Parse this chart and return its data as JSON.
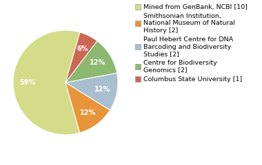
{
  "slices": [
    10,
    2,
    2,
    2,
    1
  ],
  "colors": [
    "#d4dc8a",
    "#e8943a",
    "#a8bfd0",
    "#8db870",
    "#cc6655"
  ],
  "startangle": 74,
  "legend_labels": [
    "Mined from GenBank, NCBI [10]",
    "Smithsonian Institution,\nNational Museum of Natural\nHistory [2]",
    "Paul Hebert Centre for DNA\nBarcoding and Biodiversity\nStudies [2]",
    "Centre for Biodiversity\nGenomics [2]",
    "Columbus State University [1]"
  ],
  "text_color": "#000000",
  "pct_fontsize": 7.0,
  "legend_fontsize": 6.8,
  "pct_distance": 0.72
}
